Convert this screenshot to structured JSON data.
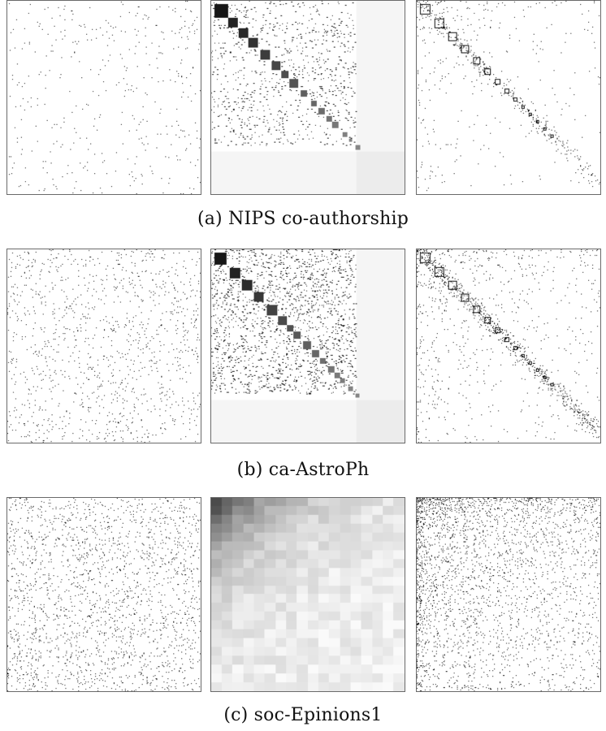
{
  "figure": {
    "rows": [
      {
        "caption": "(a) NIPS co-authorship",
        "panels": [
          {
            "kind": "random_sparse",
            "density": 0.007,
            "size": 700
          },
          {
            "kind": "block_diagonal",
            "density": 0.015,
            "size": 700
          },
          {
            "kind": "sparse_diagonal",
            "density": 0.012,
            "size": 700
          }
        ]
      },
      {
        "caption": "(b) ca-AstroPh",
        "panels": [
          {
            "kind": "random_sparse",
            "density": 0.02,
            "size": 900
          },
          {
            "kind": "block_diagonal",
            "density": 0.03,
            "size": 900
          },
          {
            "kind": "sparse_diagonal",
            "density": 0.025,
            "size": 900
          }
        ]
      },
      {
        "caption": "(c) soc-Epinions1",
        "panels": [
          {
            "kind": "random_sparse",
            "density": 0.035,
            "size": 900
          },
          {
            "kind": "smooth_blocks",
            "density": 0.0,
            "size": 900
          },
          {
            "kind": "dense_corner",
            "density": 0.05,
            "size": 900
          }
        ]
      }
    ]
  }
}
